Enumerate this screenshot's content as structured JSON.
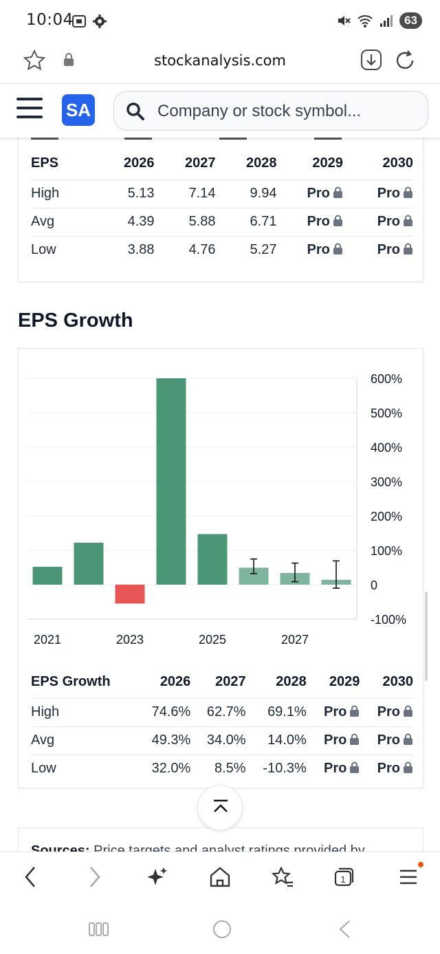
{
  "status_bar": {
    "time": "10:04",
    "battery": "63"
  },
  "browser": {
    "url": "stockanalysis.com"
  },
  "header": {
    "logo_text": "SA",
    "search_placeholder": "Company or stock symbol..."
  },
  "eps_table": {
    "header": "EPS",
    "years": [
      "2026",
      "2027",
      "2028",
      "2029",
      "2030"
    ],
    "rows": [
      {
        "label": "High",
        "values": [
          "5.13",
          "7.14",
          "9.94",
          "Pro",
          "Pro"
        ]
      },
      {
        "label": "Avg",
        "values": [
          "4.39",
          "5.88",
          "6.71",
          "Pro",
          "Pro"
        ]
      },
      {
        "label": "Low",
        "values": [
          "3.88",
          "4.76",
          "5.27",
          "Pro",
          "Pro"
        ]
      }
    ]
  },
  "growth_section": {
    "title": "EPS Growth"
  },
  "chart_data": {
    "type": "bar",
    "categories": [
      "2021",
      "2022",
      "2023",
      "2024",
      "2025",
      "2026",
      "2027",
      "2028"
    ],
    "values": [
      52,
      122,
      -55,
      600,
      147,
      49.3,
      34.0,
      14.0
    ],
    "error_bars": [
      null,
      null,
      null,
      null,
      null,
      {
        "low": 32.0,
        "high": 74.6
      },
      {
        "low": 8.5,
        "high": 62.7
      },
      {
        "low": -10.3,
        "high": 69.1
      }
    ],
    "estimate_from_index": 5,
    "x_tick_labels": [
      "2021",
      "2023",
      "2025",
      "2027"
    ],
    "y_tick_labels": [
      "600%",
      "500%",
      "400%",
      "300%",
      "200%",
      "100%",
      "0",
      "-100%"
    ],
    "ylim": [
      -100,
      600
    ],
    "colors": {
      "positive": "#4a9676",
      "negative": "#e85555",
      "estimate": "#7fb59e"
    },
    "grid": true
  },
  "growth_table": {
    "header": "EPS Growth",
    "years": [
      "2026",
      "2027",
      "2028",
      "2029",
      "2030"
    ],
    "rows": [
      {
        "label": "High",
        "values": [
          "74.6%",
          "62.7%",
          "69.1%",
          "Pro",
          "Pro"
        ]
      },
      {
        "label": "Avg",
        "values": [
          "49.3%",
          "34.0%",
          "14.0%",
          "Pro",
          "Pro"
        ]
      },
      {
        "label": "Low",
        "values": [
          "32.0%",
          "8.5%",
          "-10.3%",
          "Pro",
          "Pro"
        ]
      }
    ]
  },
  "sources": {
    "label": "Sources:",
    "text": " Price targets and analyst ratings provided by"
  }
}
